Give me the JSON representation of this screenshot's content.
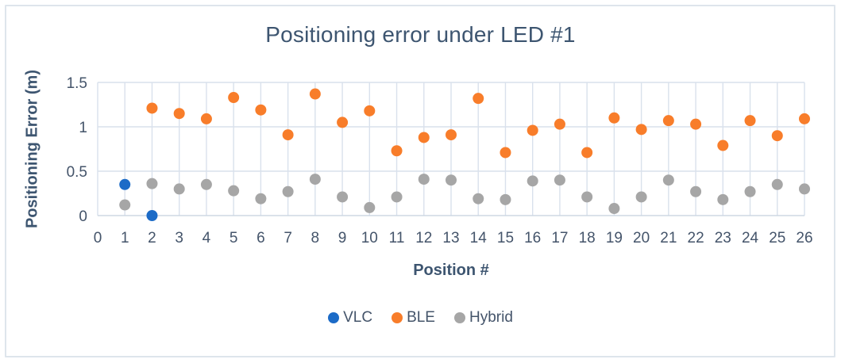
{
  "frame": {
    "border_color": "#dee5ec",
    "background": "#ffffff"
  },
  "chart_data": {
    "type": "scatter",
    "title": "Positioning error under LED #1",
    "xlabel": "Position #",
    "ylabel": "Positioning Error (m)",
    "xlim": [
      0,
      26
    ],
    "ylim": [
      0,
      1.5
    ],
    "xticks": [
      0,
      1,
      2,
      3,
      4,
      5,
      6,
      7,
      8,
      9,
      10,
      11,
      12,
      13,
      14,
      15,
      16,
      17,
      18,
      19,
      20,
      21,
      22,
      23,
      24,
      25,
      26
    ],
    "yticks": [
      0,
      0.5,
      1,
      1.5
    ],
    "ytick_labels": [
      "0",
      "0.5",
      "1",
      "1.5"
    ],
    "grid": true,
    "legend_position": "bottom",
    "text_color": "#44546A",
    "gridline_color": "#d9e1ec",
    "axis_line_color": "#cdd8e4",
    "marker_radius": 7,
    "series": [
      {
        "name": "VLC",
        "color": "#1c6bc7",
        "points": [
          [
            1,
            0.35
          ],
          [
            2,
            0.0
          ]
        ]
      },
      {
        "name": "BLE",
        "color": "#f87d2a",
        "points": [
          [
            2,
            1.21
          ],
          [
            3,
            1.15
          ],
          [
            4,
            1.09
          ],
          [
            5,
            1.33
          ],
          [
            6,
            1.19
          ],
          [
            7,
            0.91
          ],
          [
            8,
            1.37
          ],
          [
            9,
            1.05
          ],
          [
            10,
            1.18
          ],
          [
            11,
            0.73
          ],
          [
            12,
            0.88
          ],
          [
            13,
            0.91
          ],
          [
            14,
            1.32
          ],
          [
            15,
            0.71
          ],
          [
            16,
            0.96
          ],
          [
            17,
            1.03
          ],
          [
            18,
            0.71
          ],
          [
            19,
            1.1
          ],
          [
            20,
            0.97
          ],
          [
            21,
            1.07
          ],
          [
            22,
            1.03
          ],
          [
            23,
            0.79
          ],
          [
            24,
            1.07
          ],
          [
            25,
            0.9
          ],
          [
            26,
            1.09
          ]
        ]
      },
      {
        "name": "Hybrid",
        "color": "#a6a6a6",
        "points": [
          [
            1,
            0.12
          ],
          [
            2,
            0.36
          ],
          [
            3,
            0.3
          ],
          [
            4,
            0.35
          ],
          [
            5,
            0.28
          ],
          [
            6,
            0.19
          ],
          [
            7,
            0.27
          ],
          [
            8,
            0.41
          ],
          [
            9,
            0.21
          ],
          [
            10,
            0.09
          ],
          [
            11,
            0.21
          ],
          [
            12,
            0.41
          ],
          [
            13,
            0.4
          ],
          [
            14,
            0.19
          ],
          [
            15,
            0.18
          ],
          [
            16,
            0.39
          ],
          [
            17,
            0.4
          ],
          [
            18,
            0.21
          ],
          [
            19,
            0.08
          ],
          [
            20,
            0.21
          ],
          [
            21,
            0.4
          ],
          [
            22,
            0.27
          ],
          [
            23,
            0.18
          ],
          [
            24,
            0.27
          ],
          [
            25,
            0.35
          ],
          [
            26,
            0.3
          ]
        ]
      }
    ]
  }
}
